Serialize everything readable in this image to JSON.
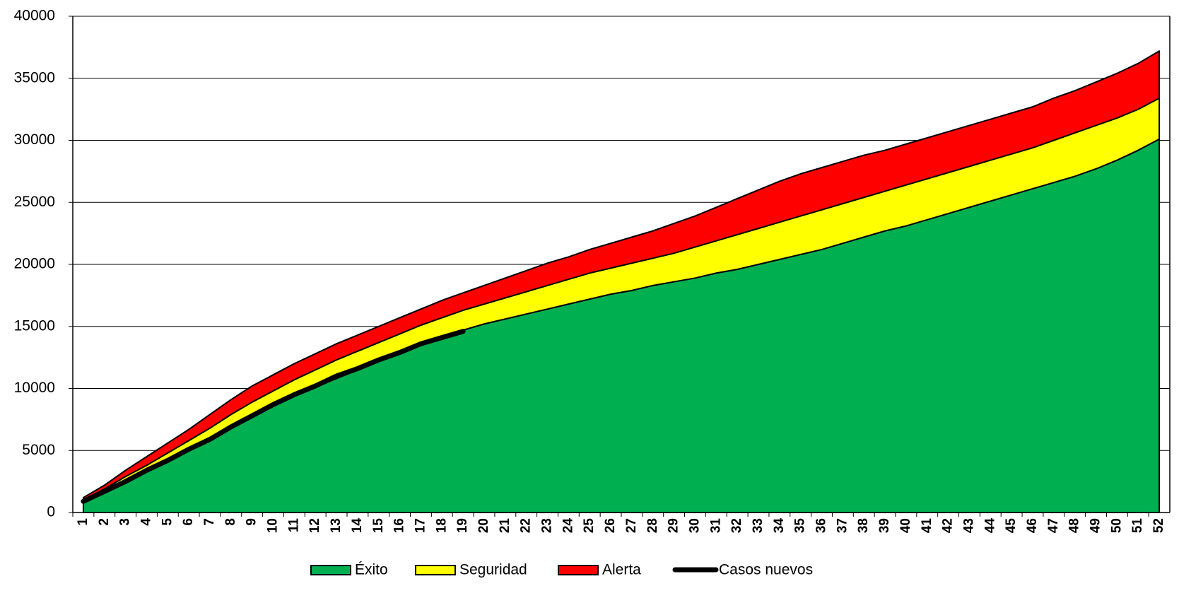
{
  "chart_data": {
    "type": "area",
    "stacked": true,
    "categories": [
      "1",
      "2",
      "3",
      "4",
      "5",
      "6",
      "7",
      "8",
      "9",
      "10",
      "11",
      "12",
      "13",
      "14",
      "15",
      "16",
      "17",
      "18",
      "19",
      "20",
      "21",
      "22",
      "23",
      "24",
      "25",
      "26",
      "27",
      "28",
      "29",
      "30",
      "31",
      "32",
      "33",
      "34",
      "35",
      "36",
      "37",
      "38",
      "39",
      "40",
      "41",
      "42",
      "43",
      "44",
      "45",
      "46",
      "47",
      "48",
      "49",
      "50",
      "51",
      "52"
    ],
    "series": [
      {
        "name": "Éxito",
        "color": "#00b050",
        "values": [
          800,
          1600,
          2500,
          3400,
          4300,
          5200,
          6000,
          7000,
          7900,
          8700,
          9400,
          10100,
          10800,
          11500,
          12200,
          12900,
          13600,
          14200,
          14700,
          15200,
          15600,
          16000,
          16400,
          16800,
          17200,
          17600,
          17900,
          18300,
          18600,
          18900,
          19300,
          19600,
          20000,
          20400,
          20800,
          21200,
          21700,
          22200,
          22700,
          23100,
          23600,
          24100,
          24600,
          25100,
          25600,
          26100,
          26600,
          27100,
          27700,
          28400,
          29200,
          30100
        ]
      },
      {
        "name": "Seguridad",
        "color": "#ffff00",
        "values": [
          200,
          300,
          400,
          400,
          500,
          600,
          800,
          900,
          1000,
          1100,
          1300,
          1400,
          1500,
          1500,
          1500,
          1500,
          1500,
          1500,
          1600,
          1600,
          1700,
          1800,
          1900,
          2000,
          2100,
          2100,
          2200,
          2200,
          2300,
          2500,
          2600,
          2800,
          2900,
          3000,
          3100,
          3200,
          3200,
          3200,
          3200,
          3300,
          3300,
          3300,
          3300,
          3300,
          3300,
          3300,
          3400,
          3500,
          3500,
          3400,
          3300,
          3300
        ]
      },
      {
        "name": "Alerta",
        "color": "#ff0000",
        "values": [
          200,
          300,
          500,
          700,
          800,
          900,
          1100,
          1200,
          1300,
          1300,
          1300,
          1300,
          1300,
          1300,
          1300,
          1300,
          1300,
          1400,
          1400,
          1500,
          1600,
          1700,
          1800,
          1800,
          1900,
          2000,
          2100,
          2200,
          2400,
          2500,
          2700,
          2900,
          3100,
          3300,
          3400,
          3400,
          3400,
          3400,
          3300,
          3300,
          3300,
          3300,
          3300,
          3300,
          3300,
          3300,
          3400,
          3400,
          3500,
          3600,
          3700,
          3800
        ]
      },
      {
        "name": "Casos nuevos",
        "type": "line",
        "color": "#000000",
        "values": [
          900,
          1700,
          2500,
          3400,
          4200,
          5100,
          5900,
          6900,
          7800,
          8700,
          9500,
          10200,
          11000,
          11600,
          12300,
          12900,
          13600,
          14100,
          14600,
          null,
          null,
          null,
          null,
          null,
          null,
          null,
          null,
          null,
          null,
          null,
          null,
          null,
          null,
          null,
          null,
          null,
          null,
          null,
          null,
          null,
          null,
          null,
          null,
          null,
          null,
          null,
          null,
          null,
          null,
          null,
          null,
          null
        ]
      }
    ],
    "ylim": [
      0,
      40000
    ],
    "yticks": [
      0,
      5000,
      10000,
      15000,
      20000,
      25000,
      30000,
      35000,
      40000
    ],
    "grid": true,
    "legend": "bottom"
  }
}
